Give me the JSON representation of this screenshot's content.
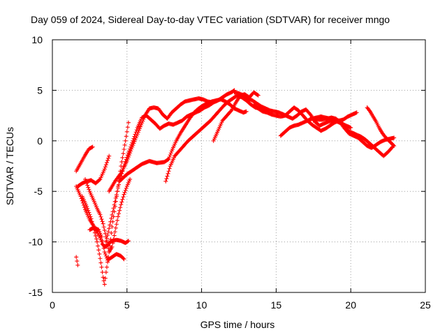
{
  "chart_data": {
    "type": "scatter",
    "title": "Day 059 of 2024, Sidereal Day-to-day VTEC variation (SDTVAR) for receiver mngo",
    "xlabel": "GPS time / hours",
    "ylabel": "SDTVAR / TECUs",
    "xlim": [
      0,
      25
    ],
    "ylim": [
      -15,
      10
    ],
    "xticks": [
      0,
      5,
      10,
      15,
      20,
      25
    ],
    "yticks": [
      -15,
      -10,
      -5,
      0,
      5,
      10
    ],
    "grid": true,
    "marker": "plus",
    "color": "#ff0000",
    "tracks": [
      {
        "x": [
          1.6,
          1.65,
          1.7
        ],
        "y": [
          -11.5,
          -11.9,
          -12.3
        ]
      },
      {
        "x": [
          1.6,
          1.9,
          2.2,
          2.5,
          2.8,
          3.0,
          3.2,
          3.35,
          3.5,
          3.65,
          3.8,
          4.0,
          4.3,
          4.6,
          4.9,
          5.1
        ],
        "y": [
          -4.5,
          -5.5,
          -6.8,
          -7.8,
          -8.5,
          -9.0,
          -9.6,
          -10.2,
          -10.5,
          -10.4,
          -10.1,
          -9.9,
          -9.8,
          -9.9,
          -10.1,
          -9.9
        ]
      },
      {
        "x": [
          1.6,
          1.9,
          2.2,
          2.45,
          2.7
        ],
        "y": [
          -3.0,
          -2.2,
          -1.4,
          -0.8,
          -0.6
        ]
      },
      {
        "x": [
          1.7,
          2.0,
          2.3,
          2.6,
          2.9,
          3.2,
          3.5,
          3.8
        ],
        "y": [
          -4.5,
          -4.2,
          -4.0,
          -3.9,
          -4.2,
          -3.8,
          -2.8,
          -1.5
        ]
      },
      {
        "x": [
          2.5,
          2.8,
          3.1,
          3.3,
          3.5,
          3.7,
          4.0,
          4.3,
          4.6,
          4.8
        ],
        "y": [
          -8.8,
          -8.6,
          -8.8,
          -9.5,
          -11.0,
          -11.8,
          -11.5,
          -11.2,
          -11.4,
          -11.7
        ]
      },
      {
        "x": [
          2.0,
          2.3,
          2.6,
          2.8,
          3.0,
          3.15,
          3.3,
          3.4,
          3.5,
          3.6,
          3.8,
          4.0,
          4.3,
          4.6,
          4.9,
          5.1
        ],
        "y": [
          -5.5,
          -6.5,
          -7.7,
          -8.8,
          -10.0,
          -11.2,
          -12.5,
          -13.5,
          -14.2,
          -13.0,
          -11.0,
          -8.5,
          -5.5,
          -2.5,
          0.0,
          1.8
        ]
      },
      {
        "x": [
          2.2,
          2.5,
          2.8,
          3.0,
          3.2,
          3.4,
          3.6,
          3.8,
          4.0,
          4.2,
          4.4,
          4.6,
          4.8,
          5.0,
          5.2
        ],
        "y": [
          -3.8,
          -5.0,
          -6.0,
          -6.7,
          -7.3,
          -8.2,
          -9.5,
          -11.0,
          -10.5,
          -9.0,
          -7.5,
          -6.3,
          -5.3,
          -4.5,
          -3.8
        ]
      },
      {
        "x": [
          3.6,
          3.9,
          4.2,
          4.5,
          4.8,
          5.1,
          5.4,
          5.7,
          6.0,
          6.3,
          6.6,
          6.9,
          7.2,
          7.5,
          7.8,
          8.1,
          8.4,
          8.7,
          9.0,
          9.3,
          9.6,
          9.9,
          10.2,
          10.5,
          10.8,
          11.1,
          11.4,
          11.7,
          12.0,
          12.2
        ],
        "y": [
          -10.0,
          -8.0,
          -6.0,
          -4.0,
          -2.5,
          -1.2,
          0.0,
          1.3,
          2.3,
          2.5,
          2.1,
          1.7,
          1.2,
          1.5,
          1.7,
          1.6,
          1.8,
          2.0,
          2.4,
          2.6,
          2.8,
          3.0,
          3.3,
          3.5,
          3.8,
          4.0,
          4.3,
          4.6,
          4.8,
          5.0
        ]
      },
      {
        "x": [
          3.8,
          4.2,
          4.6,
          5.0,
          5.3,
          5.6,
          5.9,
          6.2,
          6.5,
          6.8,
          7.1,
          7.4,
          7.7,
          8.0,
          8.3,
          8.6,
          8.9,
          9.2,
          9.5,
          9.8,
          10.1,
          10.4,
          10.7,
          11.0
        ],
        "y": [
          -5.0,
          -4.0,
          -3.2,
          -2.0,
          -0.8,
          0.3,
          1.4,
          2.5,
          3.2,
          3.3,
          3.2,
          2.6,
          2.2,
          2.8,
          3.2,
          3.6,
          3.9,
          4.0,
          4.1,
          4.2,
          4.1,
          3.9,
          3.8,
          4.0
        ]
      },
      {
        "x": [
          4.5,
          5.0,
          5.5,
          6.0,
          6.5,
          7.0,
          7.5,
          7.8,
          8.0,
          8.3,
          8.6,
          8.9,
          9.2,
          9.5,
          9.8,
          10.1,
          10.4,
          10.7,
          11.0,
          11.3,
          11.6,
          11.9,
          12.2,
          12.5,
          12.8,
          13.0
        ],
        "y": [
          -4.0,
          -3.3,
          -2.8,
          -2.3,
          -2.0,
          -2.2,
          -2.1,
          -1.8,
          -1.0,
          0.0,
          0.8,
          1.5,
          2.2,
          2.8,
          3.2,
          3.5,
          3.7,
          3.9,
          4.0,
          4.1,
          3.9,
          3.6,
          3.2,
          3.0,
          2.8,
          2.9
        ]
      },
      {
        "x": [
          7.6,
          7.9,
          8.2,
          8.5,
          8.8,
          9.1,
          9.4,
          9.7,
          10.0,
          10.3,
          10.6,
          10.9,
          11.2,
          11.5,
          11.8,
          12.1,
          12.4,
          12.7,
          13.0,
          13.3,
          13.6,
          13.9,
          14.2,
          14.5
        ],
        "y": [
          -4.0,
          -2.5,
          -1.5,
          -1.0,
          -0.5,
          0.0,
          0.4,
          0.8,
          1.2,
          1.6,
          2.0,
          2.5,
          3.0,
          3.5,
          3.9,
          4.2,
          4.5,
          4.3,
          4.0,
          3.6,
          3.3,
          3.2,
          3.0,
          2.8
        ]
      },
      {
        "x": [
          10.8,
          11.1,
          11.4,
          11.7,
          12.0,
          12.3,
          12.6,
          12.9,
          13.2,
          13.5,
          13.8
        ],
        "y": [
          0.0,
          1.0,
          2.0,
          2.5,
          3.0,
          3.8,
          4.5,
          4.6,
          4.3,
          4.8,
          4.5
        ]
      },
      {
        "x": [
          12.2,
          12.5,
          12.8,
          13.1,
          13.4,
          13.7,
          14.0,
          14.3,
          14.6,
          14.9,
          15.2,
          15.5,
          15.8,
          16.1,
          16.4,
          16.7,
          17.0,
          17.3,
          17.6,
          17.9,
          18.2,
          18.5,
          18.8,
          19.1,
          19.4,
          19.7,
          20.0
        ],
        "y": [
          4.8,
          4.7,
          4.5,
          4.2,
          4.0,
          3.7,
          3.4,
          3.2,
          3.0,
          2.9,
          2.8,
          2.6,
          2.4,
          2.2,
          2.5,
          2.9,
          3.1,
          2.6,
          1.9,
          1.5,
          1.7,
          1.9,
          2.0,
          1.9,
          1.7,
          1.5,
          1.3
        ]
      },
      {
        "x": [
          13.5,
          13.8,
          14.1,
          14.4,
          14.7,
          15.0,
          15.3,
          15.6,
          15.9,
          16.2,
          16.5,
          16.8,
          17.1,
          17.4,
          17.7,
          18.0,
          18.3,
          18.6,
          18.9,
          19.2,
          19.5,
          19.8,
          20.1,
          20.4
        ],
        "y": [
          3.5,
          3.2,
          2.9,
          2.8,
          2.6,
          2.5,
          2.4,
          2.5,
          2.9,
          3.3,
          3.0,
          2.5,
          2.0,
          1.6,
          1.3,
          1.0,
          1.2,
          1.5,
          1.8,
          2.0,
          2.1,
          2.4,
          2.6,
          2.8
        ]
      },
      {
        "x": [
          15.3,
          15.6,
          15.9,
          16.2,
          16.5,
          16.8,
          17.1,
          17.4,
          17.7,
          18.0,
          18.3,
          18.6,
          18.9,
          19.2,
          19.5,
          19.8,
          20.1,
          20.4,
          20.7,
          21.0,
          21.3,
          21.6,
          21.9,
          22.2,
          22.5,
          22.8
        ],
        "y": [
          0.5,
          0.9,
          1.3,
          1.5,
          1.6,
          1.8,
          2.0,
          2.2,
          2.3,
          2.4,
          2.3,
          2.2,
          2.1,
          2.0,
          1.6,
          1.0,
          0.8,
          0.6,
          0.4,
          0.1,
          -0.3,
          -0.7,
          -1.1,
          -1.5,
          -1.1,
          -0.6
        ]
      },
      {
        "x": [
          17.5,
          17.8,
          18.1,
          18.4,
          18.7,
          19.0,
          19.3,
          19.6,
          19.9,
          20.2,
          20.5,
          20.8,
          21.1,
          21.4,
          21.7,
          22.0,
          22.3,
          22.6,
          22.9
        ],
        "y": [
          2.0,
          2.1,
          2.1,
          2.2,
          2.3,
          2.2,
          1.8,
          1.2,
          0.7,
          0.5,
          0.3,
          -0.1,
          -0.5,
          -0.7,
          -0.4,
          -0.1,
          0.1,
          0.2,
          0.3
        ]
      },
      {
        "x": [
          21.1,
          21.3,
          21.5,
          21.7,
          21.9,
          22.1,
          22.3,
          22.5,
          22.7,
          22.9
        ],
        "y": [
          3.3,
          2.9,
          2.4,
          1.9,
          1.3,
          0.8,
          0.4,
          0.1,
          -0.2,
          -0.5
        ]
      }
    ]
  }
}
